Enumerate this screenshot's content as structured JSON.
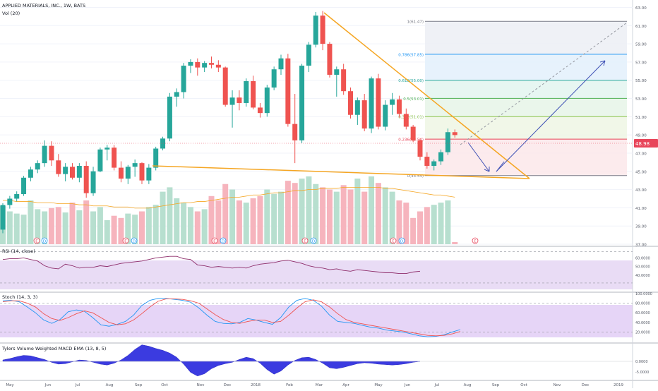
{
  "header": {
    "symbol_line": "APPLIED MATERIALS, INC., 1W, BATS",
    "vol_line": "Vol (20)"
  },
  "price_axis": {
    "labels": [
      "63.00",
      "61.00",
      "59.00",
      "57.00",
      "55.00",
      "53.00",
      "51.00",
      "49.00",
      "47.00",
      "45.00",
      "43.00",
      "41.00",
      "39.00",
      "37.00"
    ],
    "current_price": "48.98",
    "current_price_color": "#e8455a"
  },
  "time_axis": {
    "labels": [
      "May",
      "Jun",
      "Jul",
      "Aug",
      "Sep",
      "Oct",
      "Nov",
      "Dec",
      "2018",
      "Feb",
      "Mar",
      "Apr",
      "May",
      "Jun",
      "Jul",
      "Aug",
      "Sep",
      "Oct",
      "Nov",
      "Dec",
      "2019"
    ]
  },
  "fib": {
    "levels": [
      {
        "label": "1(61.47)",
        "value": 61.47,
        "color": "#787b86"
      },
      {
        "label": "0.786(57.85)",
        "value": 57.85,
        "color": "#2196f3"
      },
      {
        "label": "0.618(55.00)",
        "value": 55.0,
        "color": "#26a69a"
      },
      {
        "label": "0.5(53.01)",
        "value": 53.01,
        "color": "#4caf50"
      },
      {
        "label": "0.382(51.01)",
        "value": 51.01,
        "color": "#8bc34a"
      },
      {
        "label": "0.236(48.54)",
        "value": 48.54,
        "color": "#e8455a"
      },
      {
        "label": "0(44.54)",
        "value": 44.54,
        "color": "#787b86"
      }
    ]
  },
  "indicators": {
    "rsi": {
      "title": "RSI (14, close)",
      "axis": [
        "60.0000",
        "50.0000",
        "40.0000"
      ],
      "upper": 70,
      "lower": 30,
      "values": [
        60,
        61,
        61,
        62,
        60,
        58,
        52,
        49,
        48,
        54,
        52,
        49,
        50,
        50,
        52,
        51,
        53,
        55,
        56,
        57,
        58,
        60,
        62,
        63,
        64,
        64,
        61,
        60,
        53,
        52,
        50,
        51,
        50,
        49,
        50,
        49,
        52,
        54,
        55,
        56,
        58,
        59,
        57,
        55,
        52,
        50,
        49,
        47,
        48,
        46,
        45,
        47,
        46,
        45,
        44,
        43,
        43,
        42,
        42,
        44,
        45
      ]
    },
    "stoch": {
      "title": "Stoch (14, 3, 3)",
      "axis": [
        "100.0000",
        "80.0000",
        "60.0000",
        "40.0000",
        "20.0000"
      ],
      "upper": 80,
      "lower": 20,
      "k": [
        85,
        86,
        83,
        72,
        60,
        45,
        38,
        46,
        62,
        66,
        63,
        50,
        35,
        32,
        36,
        42,
        55,
        75,
        86,
        90,
        90,
        88,
        86,
        82,
        70,
        55,
        42,
        38,
        37,
        40,
        48,
        45,
        40,
        36,
        50,
        72,
        86,
        90,
        86,
        74,
        55,
        42,
        40,
        38,
        34,
        30,
        28,
        24,
        22,
        20,
        16,
        12,
        10,
        11,
        14,
        20,
        25
      ],
      "d": [
        83,
        85,
        85,
        80,
        72,
        58,
        48,
        44,
        50,
        58,
        64,
        60,
        50,
        40,
        35,
        37,
        45,
        58,
        72,
        84,
        89,
        89,
        88,
        85,
        80,
        68,
        56,
        46,
        40,
        38,
        42,
        45,
        45,
        40,
        42,
        55,
        70,
        83,
        87,
        83,
        72,
        58,
        46,
        40,
        37,
        34,
        31,
        28,
        25,
        22,
        19,
        16,
        13,
        12,
        13,
        16,
        21
      ]
    },
    "macd": {
      "title": "Tylers Volume Weighted MACD EMA (13, 8, 5)",
      "axis": [
        "0.0000",
        "-5.0000"
      ],
      "values": [
        0.3,
        0.6,
        1,
        1.3,
        1.2,
        0.8,
        0.4,
        -0.2,
        -0.6,
        -0.5,
        -0.1,
        0.3,
        0.2,
        -0.2,
        -0.6,
        -0.8,
        -0.4,
        0.3,
        1.3,
        2.6,
        3.6,
        3.3,
        2.8,
        2.4,
        1.8,
        0.9,
        -0.6,
        -2.4,
        -3.2,
        -2.7,
        -1.6,
        -0.9,
        -0.5,
        -0.2,
        0.4,
        0.9,
        0.6,
        -0.4,
        -1.8,
        -2.8,
        -2.1,
        -0.8,
        0.2,
        0.8,
        0.9,
        0.4,
        -0.4,
        -1.4,
        -1.6,
        -1.3,
        -0.9,
        -0.5,
        -0.3,
        -0.4,
        -0.6,
        -0.7,
        -0.8,
        -0.7,
        -0.5,
        -0.2,
        0
      ]
    }
  },
  "earnings_markers": {
    "label": "E",
    "dividend_label": "D"
  },
  "chart_data": {
    "type": "candlestick",
    "title": "APPLIED MATERIALS, INC., 1W, BATS",
    "x_labels": [
      "May",
      "Jun",
      "Jul",
      "Aug",
      "Sep",
      "Oct",
      "Nov",
      "Dec",
      "2018",
      "Feb",
      "Mar",
      "Apr",
      "May",
      "Jun",
      "Jul",
      "Aug",
      "Sep",
      "Oct",
      "Nov",
      "Dec",
      "2019"
    ],
    "ylim": [
      37,
      63.5
    ],
    "candles": [
      [
        38.6,
        41.5,
        38.2,
        41.3
      ],
      [
        41.3,
        42.3,
        40.9,
        42.0
      ],
      [
        42.0,
        42.8,
        41.7,
        42.5
      ],
      [
        42.5,
        44.5,
        42.3,
        44.3
      ],
      [
        44.3,
        45.5,
        43.9,
        45.2
      ],
      [
        45.2,
        46.2,
        44.8,
        45.9
      ],
      [
        45.9,
        48.4,
        45.5,
        47.8
      ],
      [
        47.8,
        48.3,
        45.6,
        46.2
      ],
      [
        46.2,
        46.9,
        44.4,
        44.7
      ],
      [
        44.7,
        45.9,
        43.9,
        45.5
      ],
      [
        45.5,
        45.9,
        44.1,
        44.3
      ],
      [
        44.3,
        45.9,
        43.8,
        45.6
      ],
      [
        45.6,
        46.1,
        42.1,
        42.6
      ],
      [
        42.6,
        45.5,
        42.3,
        45.0
      ],
      [
        45.0,
        47.6,
        44.9,
        47.4
      ],
      [
        47.4,
        47.9,
        46.2,
        47.6
      ],
      [
        47.6,
        47.9,
        45.1,
        45.4
      ],
      [
        45.4,
        46.1,
        43.8,
        44.2
      ],
      [
        44.2,
        45.7,
        43.6,
        45.5
      ],
      [
        45.5,
        46.3,
        44.4,
        45.9
      ],
      [
        45.9,
        46.0,
        43.6,
        44.0
      ],
      [
        44.0,
        45.8,
        43.6,
        45.4
      ],
      [
        45.4,
        47.7,
        45.1,
        47.5
      ],
      [
        47.5,
        48.8,
        47.3,
        48.6
      ],
      [
        48.6,
        53.6,
        48.3,
        53.2
      ],
      [
        53.2,
        54.1,
        52.1,
        53.7
      ],
      [
        53.7,
        56.9,
        53.0,
        56.6
      ],
      [
        56.6,
        57.3,
        55.8,
        57.0
      ],
      [
        57.0,
        57.4,
        55.5,
        56.4
      ],
      [
        56.4,
        57.1,
        55.9,
        56.9
      ],
      [
        56.9,
        57.6,
        56.3,
        56.7
      ],
      [
        56.7,
        57.2,
        55.9,
        56.4
      ],
      [
        56.4,
        56.5,
        52.1,
        52.3
      ],
      [
        52.3,
        53.9,
        49.8,
        53.1
      ],
      [
        53.1,
        53.9,
        51.7,
        52.5
      ],
      [
        52.5,
        55.2,
        52.1,
        54.9
      ],
      [
        54.9,
        55.5,
        51.8,
        52.0
      ],
      [
        52.0,
        52.5,
        50.9,
        51.4
      ],
      [
        51.4,
        54.5,
        51.0,
        54.2
      ],
      [
        54.2,
        56.5,
        53.9,
        56.2
      ],
      [
        56.2,
        57.8,
        55.6,
        57.4
      ],
      [
        57.4,
        57.9,
        49.9,
        50.2
      ],
      [
        50.2,
        53.5,
        45.9,
        48.4
      ],
      [
        48.4,
        56.8,
        48.1,
        56.6
      ],
      [
        56.6,
        59.2,
        55.9,
        58.9
      ],
      [
        58.9,
        62.5,
        58.6,
        62.1
      ],
      [
        62.1,
        62.6,
        58.3,
        59.0
      ],
      [
        59.0,
        59.2,
        55.3,
        55.6
      ],
      [
        55.6,
        56.5,
        53.2,
        56.2
      ],
      [
        56.2,
        56.8,
        53.4,
        53.8
      ],
      [
        53.8,
        54.2,
        50.8,
        51.2
      ],
      [
        51.2,
        53.1,
        50.1,
        52.8
      ],
      [
        52.8,
        53.5,
        49.4,
        49.7
      ],
      [
        49.7,
        55.4,
        49.2,
        55.2
      ],
      [
        55.2,
        55.7,
        49.6,
        49.9
      ],
      [
        49.9,
        52.8,
        49.5,
        52.3
      ],
      [
        52.3,
        53.6,
        51.2,
        52.9
      ],
      [
        52.9,
        53.3,
        50.9,
        51.3
      ],
      [
        51.3,
        51.9,
        49.6,
        49.9
      ],
      [
        49.9,
        50.1,
        48.2,
        48.4
      ],
      [
        48.4,
        48.6,
        46.2,
        46.6
      ],
      [
        46.6,
        47.1,
        45.3,
        45.6
      ],
      [
        45.6,
        46.3,
        45.1,
        46.1
      ],
      [
        46.1,
        47.4,
        45.7,
        47.1
      ],
      [
        47.1,
        49.7,
        46.8,
        49.3
      ],
      [
        49.3,
        49.6,
        48.7,
        48.98
      ]
    ],
    "volume_unit": "relative",
    "volume": [
      35,
      30,
      28,
      27,
      40,
      32,
      30,
      33,
      34,
      29,
      38,
      31,
      40,
      30,
      34,
      22,
      26,
      24,
      28,
      27,
      30,
      34,
      36,
      48,
      52,
      42,
      38,
      34,
      30,
      32,
      44,
      40,
      55,
      50,
      40,
      38,
      42,
      44,
      50,
      46,
      48,
      58,
      56,
      60,
      62,
      55,
      52,
      50,
      48,
      54,
      50,
      60,
      48,
      62,
      56,
      52,
      48,
      40,
      38,
      24,
      30,
      34,
      36,
      38,
      40,
      2
    ],
    "volume_ma": [
      40,
      40,
      39,
      39,
      39,
      38,
      38,
      38,
      37,
      37,
      37,
      36,
      36,
      35,
      35,
      35,
      34,
      34,
      34,
      33,
      33,
      33,
      34,
      35,
      36,
      37,
      38,
      38,
      39,
      39,
      40,
      41,
      42,
      43,
      43,
      44,
      45,
      45,
      46,
      47,
      47,
      48,
      49,
      49,
      50,
      50,
      51,
      51,
      51,
      52,
      52,
      52,
      52,
      52,
      52,
      51,
      51,
      50,
      49,
      48,
      47,
      46,
      45,
      45,
      44,
      43
    ]
  }
}
